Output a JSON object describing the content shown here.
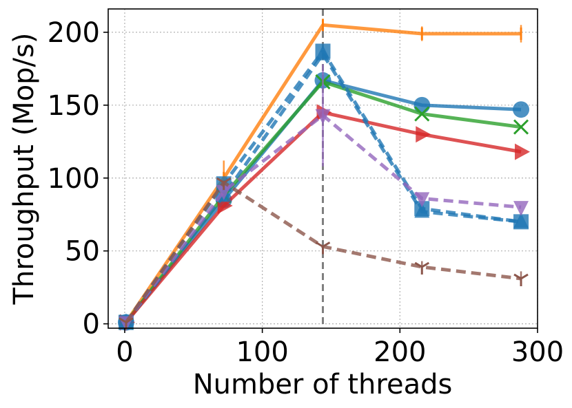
{
  "chart_data": {
    "type": "line",
    "xlabel": "Number of threads",
    "ylabel": "Throughput (Mop/s)",
    "xlim": [
      -12,
      300
    ],
    "ylim": [
      -3,
      216
    ],
    "xticks": [
      0,
      100,
      200,
      300
    ],
    "yticks": [
      0,
      50,
      100,
      150,
      200
    ],
    "grid": true,
    "vline": {
      "x": 144,
      "style": "dashed",
      "color": "#7f7f7f"
    },
    "x": [
      1,
      72,
      144,
      216,
      288
    ],
    "series": [
      {
        "color": "#ff7f0e",
        "dash": false,
        "marker": "vline",
        "values": [
          1,
          100,
          205,
          199,
          199
        ],
        "err": [
          0,
          12,
          0,
          5,
          6
        ]
      },
      {
        "color": "#1f77b4",
        "dash": false,
        "marker": "circle",
        "values": [
          1,
          85,
          167,
          150,
          147
        ],
        "err": [
          0,
          0,
          0,
          0,
          0
        ]
      },
      {
        "color": "#2ca02c",
        "dash": false,
        "marker": "x",
        "values": [
          1,
          88,
          166,
          144,
          135
        ],
        "err": [
          0,
          0,
          0,
          0,
          0
        ]
      },
      {
        "color": "#d62728",
        "dash": false,
        "marker": "triangle-right",
        "values": [
          1,
          81,
          145,
          130,
          118
        ],
        "err": [
          0,
          0,
          0,
          0,
          0
        ]
      },
      {
        "color": "#1f77b4",
        "dash": true,
        "marker": "square",
        "values": [
          1,
          96,
          187,
          79,
          70
        ],
        "err": [
          0,
          0,
          0,
          0,
          0
        ]
      },
      {
        "color": "#1f77b4",
        "dash": true,
        "marker": "triangle-up",
        "values": [
          1,
          88,
          185,
          77,
          70
        ],
        "err": [
          0,
          0,
          0,
          0,
          0
        ]
      },
      {
        "color": "#9467bd",
        "dash": true,
        "marker": "triangle-down",
        "values": [
          1,
          91,
          143,
          86,
          80
        ],
        "err": [
          0,
          0,
          35,
          0,
          0
        ]
      },
      {
        "color": "#8c564b",
        "dash": true,
        "marker": "tri-down",
        "values": [
          1,
          97,
          53,
          39,
          31
        ],
        "err": [
          0,
          0,
          0,
          4,
          5
        ]
      }
    ]
  }
}
